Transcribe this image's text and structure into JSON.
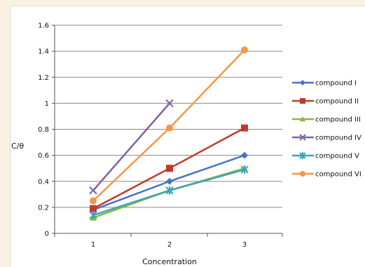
{
  "chart_data": {
    "type": "line",
    "title": "",
    "xlabel": "Concentration",
    "ylabel": "C/θ",
    "categories": [
      "1",
      "2",
      "3"
    ],
    "ylim": [
      0,
      1.6
    ],
    "yticks": [
      "0",
      "0.2",
      "0.4",
      "0.6",
      "0.8",
      "1",
      "1.2",
      "1.4",
      "1.6"
    ],
    "grid": "horizontal",
    "legend_position": "right",
    "series": [
      {
        "name": "compound I",
        "values": [
          0.18,
          0.4,
          0.6
        ],
        "color": "#4472c4",
        "marker": "diamond"
      },
      {
        "name": "compound II",
        "values": [
          0.19,
          0.5,
          0.81
        ],
        "color": "#c0392b",
        "marker": "square"
      },
      {
        "name": "compound III",
        "values": [
          0.12,
          0.33,
          0.5
        ],
        "color": "#8cb83a",
        "marker": "triangle"
      },
      {
        "name": "compound IV",
        "values": [
          0.33,
          1.0,
          null
        ],
        "color": "#8064a2",
        "marker": "x"
      },
      {
        "name": "compound V",
        "values": [
          0.14,
          0.33,
          0.49
        ],
        "color": "#3fa3b8",
        "marker": "star"
      },
      {
        "name": "compound VI",
        "values": [
          0.25,
          0.81,
          1.41
        ],
        "color": "#f79646",
        "marker": "circle"
      }
    ]
  }
}
